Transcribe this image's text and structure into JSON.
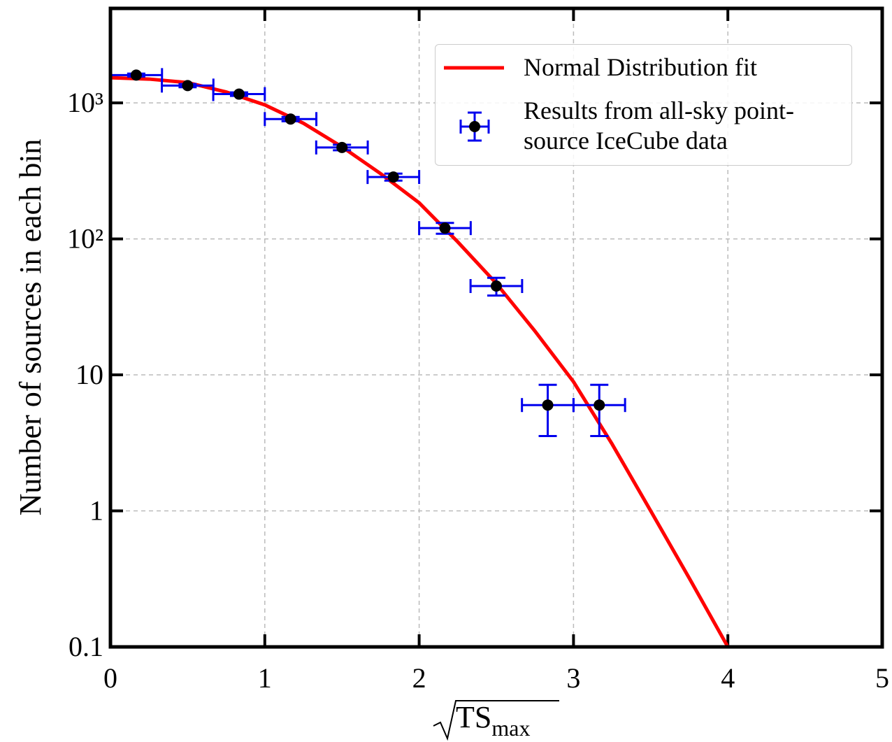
{
  "chart_data": {
    "type": "errorbar",
    "xlabel": "TS",
    "xlabel_subscript": "max",
    "ylabel": "Number of sources in each bin",
    "xlim": [
      0,
      5
    ],
    "xticks": [
      0,
      1,
      2,
      3,
      4,
      5
    ],
    "ylim": [
      0.1,
      4950
    ],
    "ylog": true,
    "yticks": [
      {
        "value": 0.1,
        "label": "0.1"
      },
      1,
      10,
      {
        "value": 100,
        "label": "10²"
      },
      {
        "value": 1000,
        "label": "10³"
      }
    ],
    "grid": true,
    "legend": "upper right",
    "series": [
      {
        "name": "Normal Distribution fit",
        "kind": "line",
        "color": "#ff0000",
        "x": [
          0,
          0.25,
          0.5,
          0.75,
          1,
          1.25,
          1.5,
          1.75,
          2,
          2.25,
          2.5,
          2.75,
          3,
          3.25,
          3.5,
          3.75,
          4
        ],
        "values": [
          1531,
          1496,
          1409,
          1202,
          966,
          708,
          475,
          302,
          184,
          95,
          47,
          21,
          8.9,
          3.1,
          1,
          0.32,
          0.1
        ]
      },
      {
        "name": "Results from all-sky point-source IceCube data",
        "kind": "errorbar",
        "color": "#000000",
        "error_color": "#0000ee",
        "x": [
          0.167,
          0.5,
          0.833,
          1.167,
          1.5,
          1.833,
          2.167,
          2.5,
          2.833,
          3.167
        ],
        "xerr": [
          0.167,
          0.167,
          0.167,
          0.167,
          0.167,
          0.167,
          0.167,
          0.167,
          0.167,
          0.167
        ],
        "values": [
          1600,
          1340,
          1160,
          760,
          470,
          285,
          120,
          45,
          6,
          6
        ],
        "yerr": [
          40,
          37,
          34,
          28,
          22,
          17,
          11,
          6.7,
          2.45,
          2.45
        ]
      }
    ]
  }
}
